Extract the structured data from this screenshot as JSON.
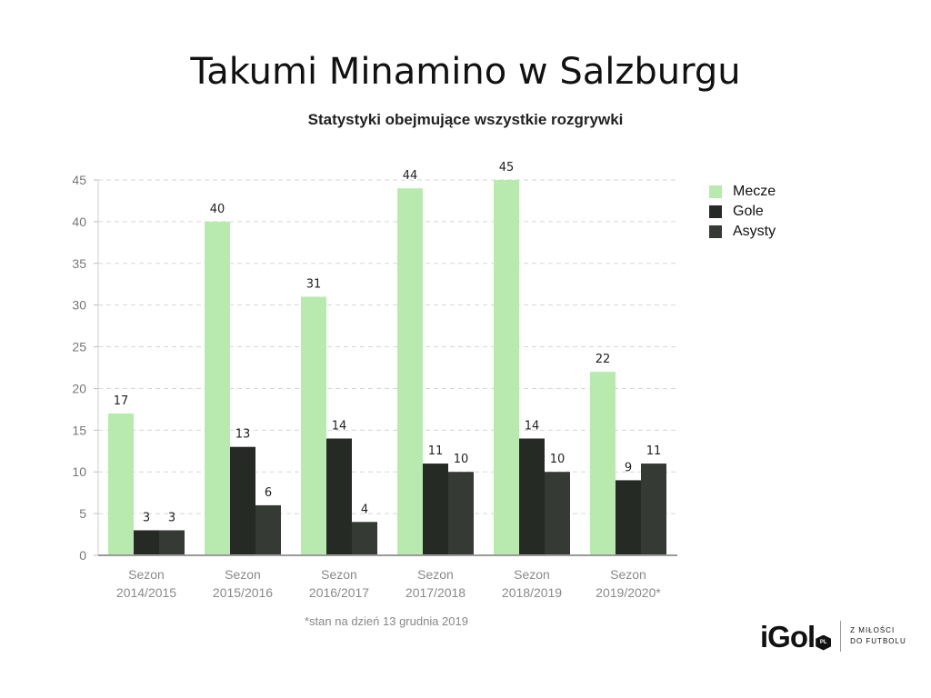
{
  "title": "Takumi Minamino w Salzburgu",
  "subtitle": "Statystyki obejmujące wszystkie rozgrywki",
  "footnote": "*stan na dzień 13 grudnia 2019",
  "logo": {
    "word": "iGol",
    "badge": "PL",
    "tagline_line1": "Z MIŁOŚCI",
    "tagline_line2": "DO FUTBOLU"
  },
  "chart_data": {
    "type": "bar",
    "categories": [
      [
        "Sezon",
        "2014/2015"
      ],
      [
        "Sezon",
        "2015/2016"
      ],
      [
        "Sezon",
        "2016/2017"
      ],
      [
        "Sezon",
        "2017/2018"
      ],
      [
        "Sezon",
        "2018/2019"
      ],
      [
        "Sezon",
        "2019/2020*"
      ]
    ],
    "series": [
      {
        "name": "Mecze",
        "color": "#b8eab0",
        "values": [
          17,
          40,
          31,
          44,
          45,
          22
        ]
      },
      {
        "name": "Gole",
        "color": "#262a25",
        "values": [
          3,
          13,
          14,
          11,
          14,
          9
        ]
      },
      {
        "name": "Asysty",
        "color": "#353a34",
        "values": [
          3,
          6,
          4,
          10,
          10,
          11
        ]
      }
    ],
    "ylim": [
      0,
      45
    ],
    "yticks": [
      0,
      5,
      10,
      15,
      20,
      25,
      30,
      35,
      40,
      45
    ],
    "grid": true,
    "legend_position": "right"
  }
}
